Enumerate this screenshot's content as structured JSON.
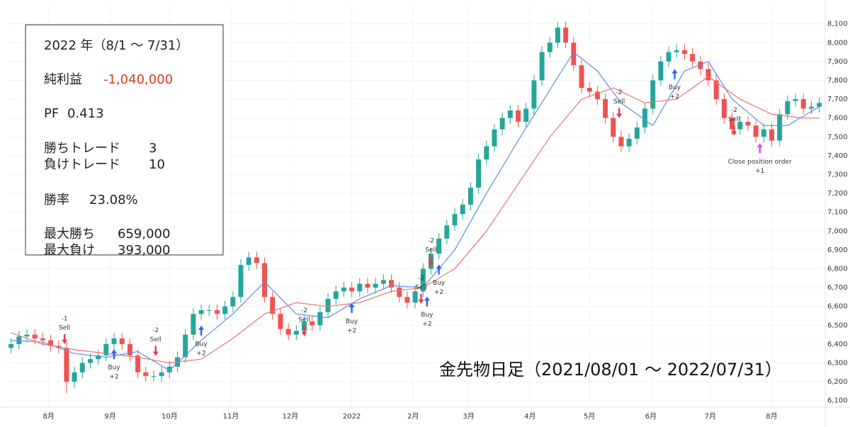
{
  "info_panel": {
    "title": "2022 年（8/1 ～ 7/31）",
    "rows": [
      {
        "label": "純利益",
        "value": "-1,040,000"
      },
      {
        "label": "PF",
        "value": "0.413"
      },
      {
        "label": "勝ちトレード",
        "value": "3"
      },
      {
        "label": "負けトレード",
        "value": "10"
      },
      {
        "label": "勝率",
        "value": "23.08%"
      },
      {
        "label": "最大勝ち",
        "value": "659,000"
      },
      {
        "label": "最大負け",
        "value": "393,000"
      }
    ]
  },
  "chart_data": {
    "type": "candlestick",
    "caption": "金先物日足（2021/08/01 ～ 2022/07/31）",
    "up_color": "#26a69a",
    "down_color": "#ef5350",
    "grid": true,
    "xlim": [
      10,
      423
    ],
    "ylim": [
      6065,
      8125
    ],
    "xticks": [
      {
        "value": 31,
        "label": "8月"
      },
      {
        "value": 62,
        "label": "9月"
      },
      {
        "value": 92,
        "label": "10月"
      },
      {
        "value": 123,
        "label": "11月"
      },
      {
        "value": 153,
        "label": "12月"
      },
      {
        "value": 184,
        "label": "2022"
      },
      {
        "value": 215,
        "label": "2月"
      },
      {
        "value": 243,
        "label": "3月"
      },
      {
        "value": 274,
        "label": "4月"
      },
      {
        "value": 304,
        "label": "5月"
      },
      {
        "value": 335,
        "label": "6月"
      },
      {
        "value": 365,
        "label": "7月"
      },
      {
        "value": 396,
        "label": "8月"
      }
    ],
    "yticks": [
      {
        "value": 6100,
        "label": "6,100"
      },
      {
        "value": 6200,
        "label": "6,200"
      },
      {
        "value": 6300,
        "label": "6,300"
      },
      {
        "value": 6400,
        "label": "6,400"
      },
      {
        "value": 6500,
        "label": "6,500"
      },
      {
        "value": 6600,
        "label": "6,600"
      },
      {
        "value": 6700,
        "label": "6,700"
      },
      {
        "value": 6800,
        "label": "6,800"
      },
      {
        "value": 6900,
        "label": "6,900"
      },
      {
        "value": 7000,
        "label": "7,000"
      },
      {
        "value": 7100,
        "label": "7,100"
      },
      {
        "value": 7200,
        "label": "7,200"
      },
      {
        "value": 7300,
        "label": "7,300"
      },
      {
        "value": 7400,
        "label": "7,400"
      },
      {
        "value": 7500,
        "label": "7,500"
      },
      {
        "value": 7600,
        "label": "7,600"
      },
      {
        "value": 7700,
        "label": "7,700"
      },
      {
        "value": 7800,
        "label": "7,800"
      },
      {
        "value": 7900,
        "label": "7,900"
      },
      {
        "value": 8000,
        "label": "8,000"
      },
      {
        "value": 8100,
        "label": "8,100"
      }
    ],
    "ohlc": {
      "x": [
        12,
        16,
        20,
        24,
        28,
        32,
        36,
        40,
        44,
        48,
        52,
        56,
        60,
        64,
        68,
        72,
        76,
        80,
        84,
        88,
        92,
        96,
        100,
        104,
        108,
        112,
        116,
        120,
        124,
        128,
        132,
        136,
        140,
        144,
        148,
        152,
        156,
        160,
        164,
        168,
        172,
        176,
        180,
        184,
        188,
        192,
        196,
        200,
        204,
        208,
        212,
        216,
        220,
        224,
        228,
        232,
        236,
        240,
        244,
        248,
        252,
        256,
        260,
        264,
        268,
        272,
        276,
        280,
        284,
        288,
        292,
        296,
        300,
        304,
        308,
        312,
        316,
        320,
        324,
        328,
        332,
        336,
        340,
        344,
        348,
        352,
        356,
        360,
        364,
        368,
        372,
        376,
        380,
        384,
        388,
        392,
        396,
        400,
        404,
        408,
        412,
        416,
        420
      ],
      "open": [
        6380,
        6400,
        6440,
        6450,
        6430,
        6420,
        6390,
        6380,
        6200,
        6250,
        6300,
        6320,
        6340,
        6400,
        6430,
        6400,
        6340,
        6250,
        6230,
        6230,
        6250,
        6280,
        6330,
        6450,
        6560,
        6580,
        6580,
        6560,
        6600,
        6650,
        6820,
        6860,
        6830,
        6650,
        6560,
        6480,
        6450,
        6470,
        6520,
        6500,
        6570,
        6640,
        6680,
        6700,
        6680,
        6720,
        6700,
        6720,
        6740,
        6700,
        6650,
        6620,
        6680,
        6800,
        6880,
        6960,
        7030,
        7090,
        7140,
        7230,
        7380,
        7450,
        7540,
        7600,
        7640,
        7580,
        7650,
        7800,
        7950,
        8000,
        8080,
        8000,
        7880,
        7760,
        7740,
        7700,
        7600,
        7500,
        7450,
        7490,
        7550,
        7650,
        7800,
        7900,
        7950,
        7960,
        7940,
        7900,
        7860,
        7800,
        7700,
        7600,
        7540,
        7580,
        7560,
        7500,
        7540,
        7480,
        7620,
        7690,
        7700,
        7650,
        7660
      ],
      "high": [
        6430,
        6470,
        6480,
        6480,
        6460,
        6450,
        6420,
        6410,
        6280,
        6330,
        6350,
        6370,
        6430,
        6460,
        6460,
        6430,
        6370,
        6280,
        6260,
        6280,
        6310,
        6360,
        6480,
        6590,
        6610,
        6610,
        6610,
        6630,
        6680,
        6850,
        6890,
        6890,
        6860,
        6680,
        6590,
        6510,
        6500,
        6550,
        6550,
        6600,
        6670,
        6710,
        6730,
        6730,
        6750,
        6750,
        6750,
        6770,
        6770,
        6730,
        6680,
        6710,
        6830,
        6910,
        6990,
        7060,
        7120,
        7170,
        7260,
        7410,
        7480,
        7570,
        7630,
        7670,
        7670,
        7680,
        7830,
        7980,
        8030,
        8110,
        8110,
        8030,
        7910,
        7790,
        7770,
        7730,
        7630,
        7530,
        7520,
        7580,
        7680,
        7830,
        7930,
        7980,
        7990,
        7990,
        7970,
        7930,
        7890,
        7830,
        7730,
        7630,
        7610,
        7610,
        7590,
        7570,
        7570,
        7650,
        7720,
        7730,
        7730,
        7690,
        7710
      ],
      "low": [
        6350,
        6370,
        6410,
        6400,
        6390,
        6360,
        6350,
        6140,
        6170,
        6220,
        6270,
        6290,
        6310,
        6370,
        6370,
        6310,
        6220,
        6200,
        6200,
        6200,
        6220,
        6250,
        6300,
        6420,
        6530,
        6550,
        6530,
        6530,
        6570,
        6620,
        6790,
        6800,
        6620,
        6530,
        6450,
        6420,
        6420,
        6440,
        6470,
        6470,
        6540,
        6610,
        6650,
        6650,
        6650,
        6670,
        6670,
        6690,
        6670,
        6620,
        6590,
        6590,
        6650,
        6770,
        6850,
        6930,
        7000,
        7060,
        7110,
        7200,
        7350,
        7420,
        7510,
        7570,
        7550,
        7550,
        7620,
        7770,
        7920,
        7970,
        7970,
        7850,
        7730,
        7710,
        7670,
        7570,
        7470,
        7420,
        7420,
        7460,
        7520,
        7620,
        7770,
        7870,
        7920,
        7910,
        7870,
        7830,
        7770,
        7670,
        7570,
        7510,
        7510,
        7530,
        7470,
        7470,
        7450,
        7450,
        7590,
        7660,
        7620,
        7620,
        7630
      ],
      "close": [
        6400,
        6440,
        6450,
        6430,
        6420,
        6390,
        6380,
        6200,
        6250,
        6300,
        6320,
        6340,
        6400,
        6430,
        6400,
        6340,
        6250,
        6230,
        6230,
        6250,
        6280,
        6330,
        6450,
        6560,
        6580,
        6580,
        6560,
        6600,
        6650,
        6820,
        6860,
        6830,
        6650,
        6560,
        6480,
        6450,
        6470,
        6520,
        6500,
        6570,
        6640,
        6680,
        6700,
        6680,
        6720,
        6700,
        6720,
        6740,
        6700,
        6650,
        6620,
        6680,
        6800,
        6880,
        6960,
        7030,
        7090,
        7140,
        7230,
        7380,
        7450,
        7540,
        7600,
        7640,
        7580,
        7650,
        7800,
        7950,
        8000,
        8080,
        8000,
        7880,
        7760,
        7740,
        7700,
        7600,
        7500,
        7450,
        7490,
        7550,
        7650,
        7800,
        7900,
        7950,
        7960,
        7940,
        7900,
        7860,
        7800,
        7700,
        7600,
        7540,
        7580,
        7560,
        7500,
        7540,
        7480,
        7620,
        7690,
        7700,
        7650,
        7660,
        7680
      ]
    },
    "lines": [
      {
        "color": "#5b8def",
        "x": [
          12,
          28,
          44,
          60,
          76,
          92,
          108,
          124,
          140,
          156,
          172,
          188,
          204,
          220,
          236,
          252,
          268,
          284,
          296,
          308,
          320,
          336,
          352,
          364,
          376,
          392,
          404,
          420
        ],
        "values": [
          6420,
          6410,
          6350,
          6330,
          6360,
          6260,
          6420,
          6560,
          6730,
          6560,
          6540,
          6640,
          6710,
          6700,
          6900,
          7200,
          7480,
          7750,
          7950,
          7850,
          7680,
          7560,
          7850,
          7900,
          7700,
          7560,
          7560,
          7660
        ]
      },
      {
        "color": "#f07070",
        "x": [
          12,
          28,
          44,
          60,
          76,
          92,
          108,
          124,
          140,
          156,
          172,
          188,
          204,
          220,
          236,
          252,
          268,
          284,
          300,
          316,
          332,
          348,
          364,
          380,
          396,
          412,
          420
        ],
        "values": [
          6460,
          6400,
          6370,
          6350,
          6330,
          6300,
          6320,
          6430,
          6560,
          6620,
          6600,
          6620,
          6680,
          6700,
          6800,
          7000,
          7250,
          7500,
          7700,
          7760,
          7680,
          7700,
          7820,
          7700,
          7620,
          7600,
          7600
        ]
      }
    ],
    "markers": [
      {
        "x": 39,
        "y": 6423,
        "side": "sell",
        "color": "#f23645",
        "lines": [
          "-1",
          "Sell"
        ]
      },
      {
        "x": 64,
        "y": 6350,
        "side": "buy",
        "color": "#2962ff",
        "lines": [
          "Buy",
          "+2"
        ]
      },
      {
        "x": 85,
        "y": 6360,
        "side": "sell",
        "color": "#f23645",
        "lines": [
          "-2",
          "Sell"
        ]
      },
      {
        "x": 108,
        "y": 6475,
        "side": "buy",
        "color": "#2962ff",
        "lines": [
          "Buy",
          "+2"
        ]
      },
      {
        "x": 160,
        "y": 6465,
        "side": "sell",
        "color": "#f23645",
        "lines": [
          "-2",
          "Sell"
        ]
      },
      {
        "x": 184,
        "y": 6595,
        "side": "buy",
        "color": "#2962ff",
        "lines": [
          "Buy",
          "+2"
        ]
      },
      {
        "x": 219,
        "y": 6637,
        "side": "sell",
        "color": "#f23645",
        "lines": [
          "-2",
          "Sell"
        ]
      },
      {
        "x": 222,
        "y": 6630,
        "side": "buy",
        "color": "#2962ff",
        "lines": [
          "Buy",
          "+2"
        ]
      },
      {
        "x": 224,
        "y": 6835,
        "side": "sell",
        "color": "#f23645",
        "lines": [
          "-2",
          "Sell"
        ]
      },
      {
        "x": 228,
        "y": 6800,
        "side": "buy",
        "color": "#2962ff",
        "lines": [
          "Buy",
          "+2"
        ]
      },
      {
        "x": 319,
        "y": 7623,
        "side": "sell",
        "color": "#f23645",
        "lines": [
          "-2",
          "Sell"
        ]
      },
      {
        "x": 347,
        "y": 7837,
        "side": "buy",
        "color": "#2962ff",
        "lines": [
          "Buy",
          "+2"
        ]
      },
      {
        "x": 377,
        "y": 7530,
        "side": "sell",
        "color": "#f23645",
        "lines": [
          "-2",
          "Sell"
        ]
      },
      {
        "x": 390,
        "y": 7443,
        "side": "buy",
        "color": "#e040fb",
        "lines": [
          "Close position order",
          "+1"
        ]
      }
    ]
  }
}
